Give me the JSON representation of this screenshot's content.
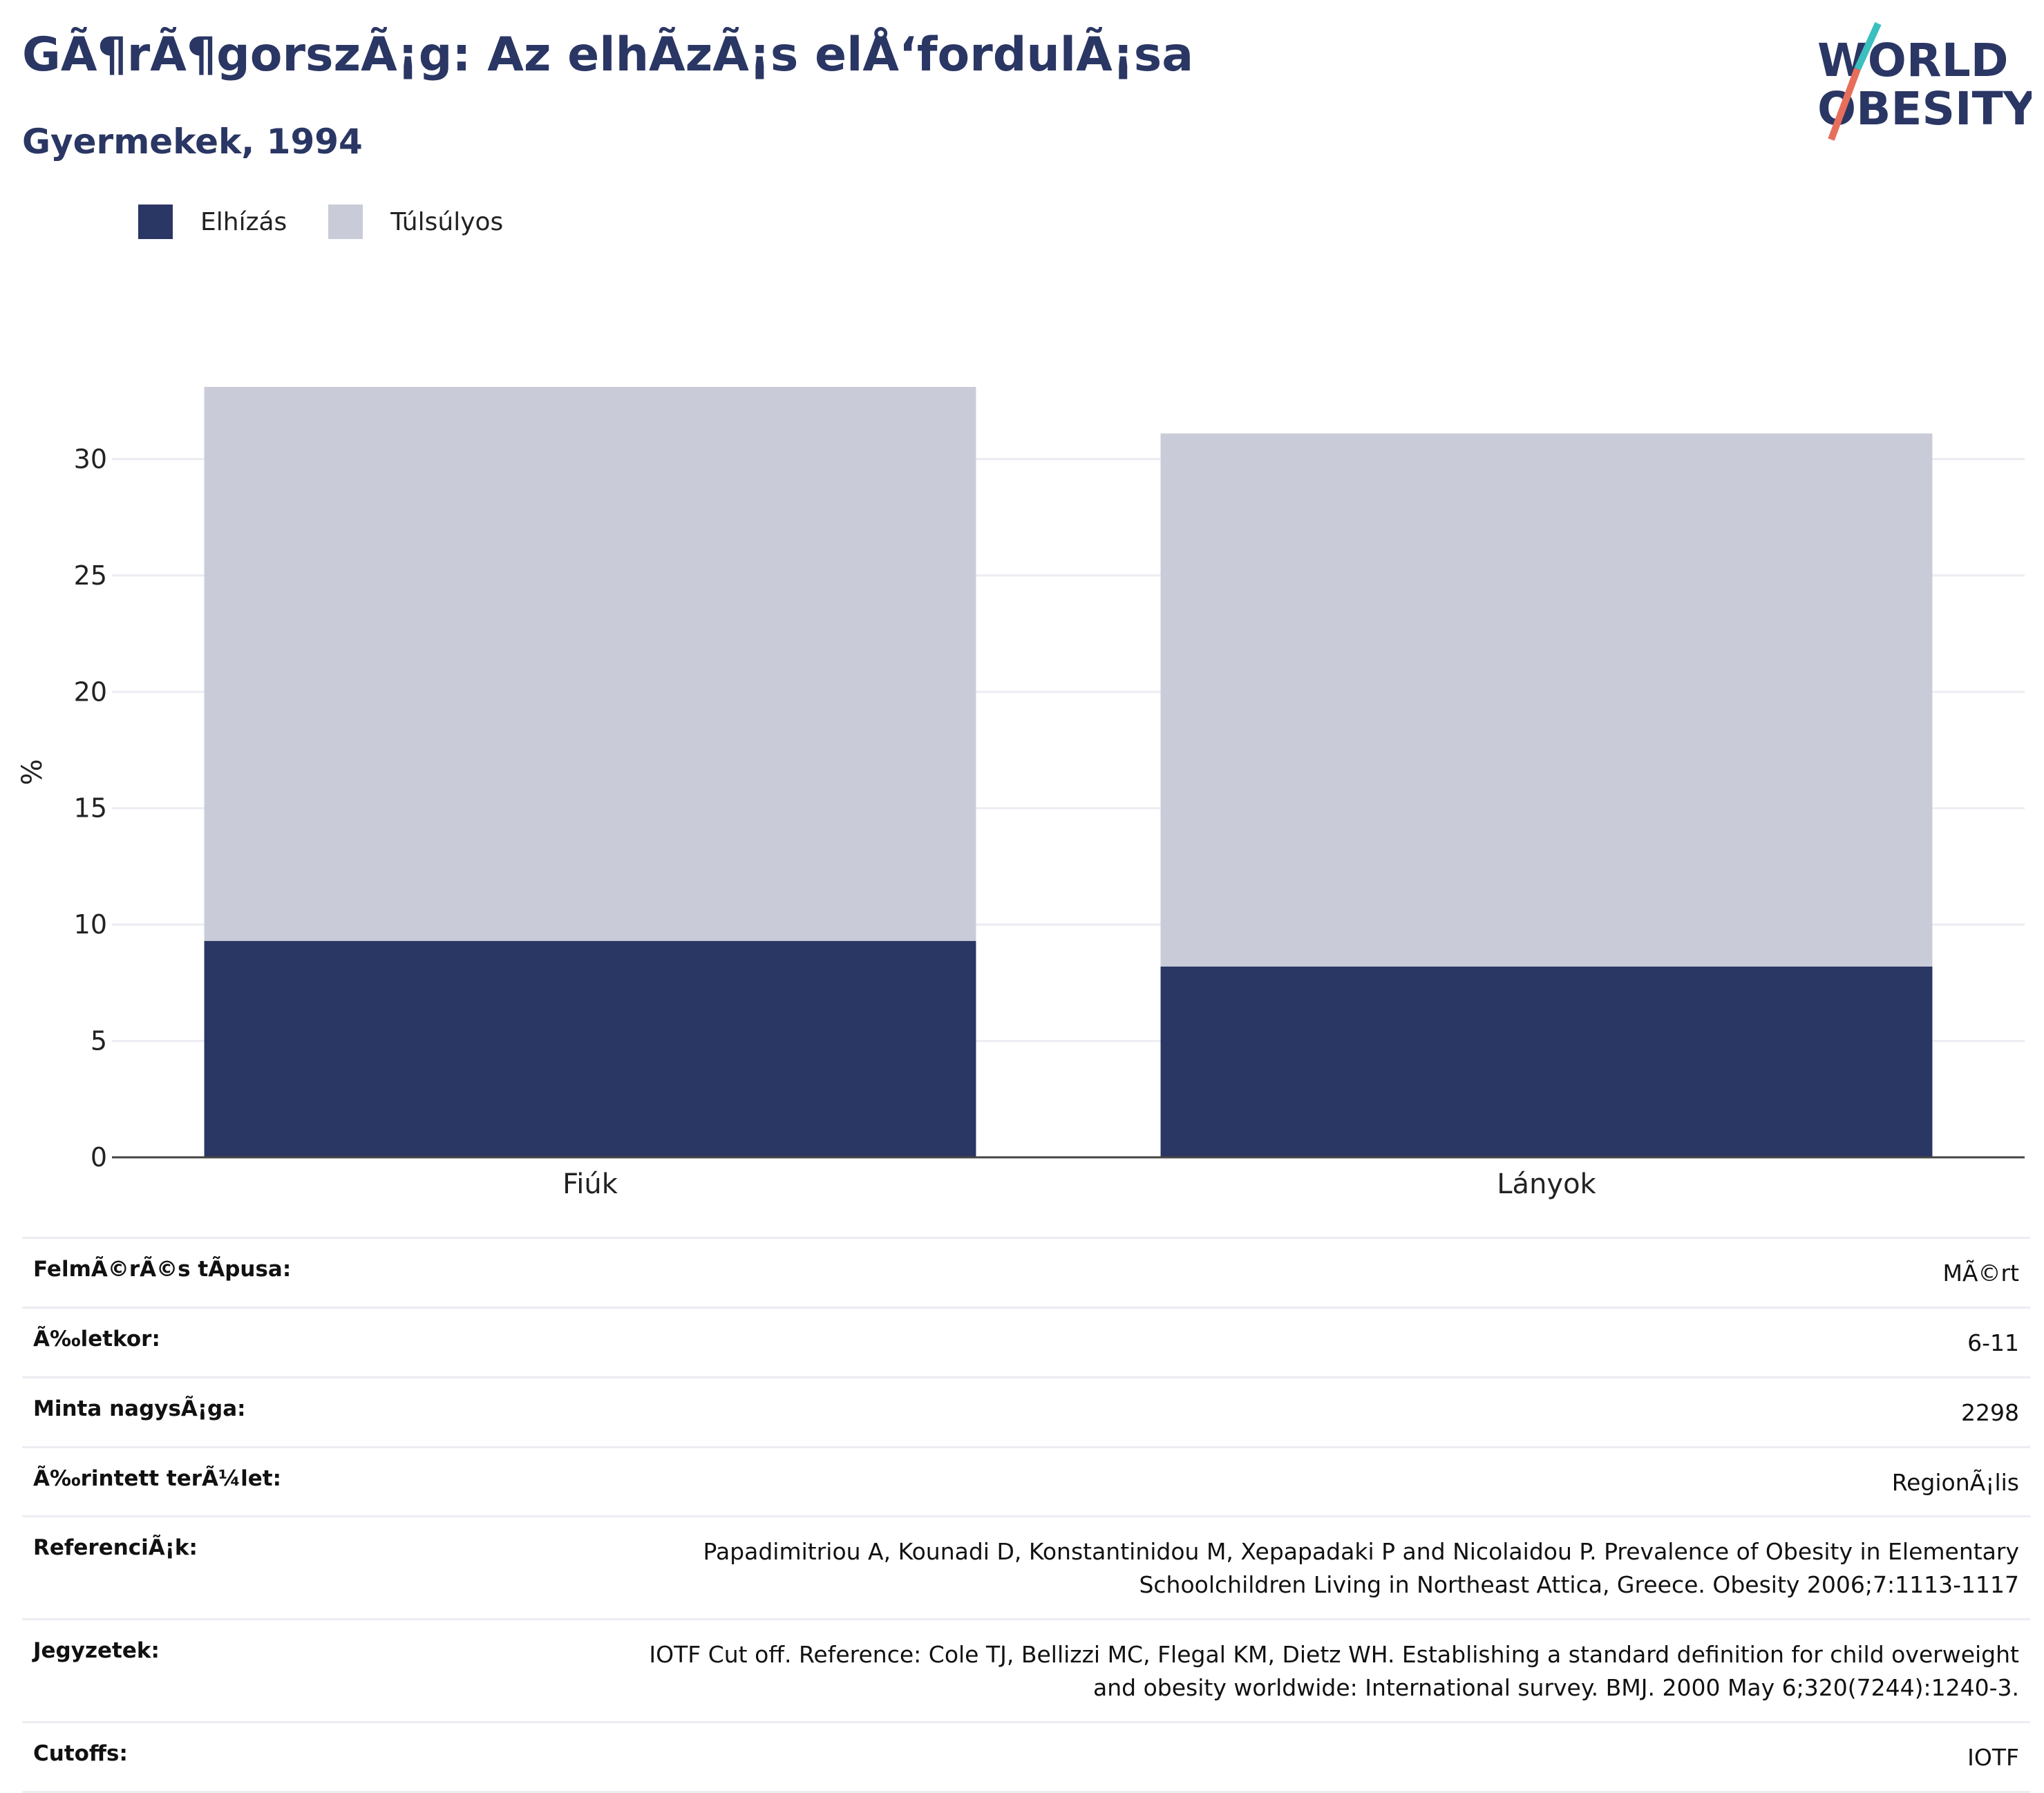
{
  "header": {
    "title": "GÃ¶rÃ¶gorszÃ¡g: Az elhÃ­zÃ¡s elÅ‘fordulÃ¡sa",
    "subtitle": "Gyermekek, 1994"
  },
  "logo": {
    "line1": "WORLD",
    "line2": "OBESITY"
  },
  "colors": {
    "obesity": "#2a3663",
    "overweight": "#c9ccd8",
    "brand_teal": "#3bbfbf",
    "brand_coral": "#e66f5c"
  },
  "chart_data": {
    "type": "bar",
    "stacked": true,
    "categories": [
      "Fiúk",
      "Lányok"
    ],
    "series": [
      {
        "name": "Elhízás",
        "values": [
          9.3,
          8.2
        ]
      },
      {
        "name": "Túlsúlyos",
        "values": [
          23.8,
          22.9
        ]
      }
    ],
    "ylabel": "%",
    "ylim": [
      0,
      33.1
    ],
    "yticks": [
      0,
      5,
      10,
      15,
      20,
      25,
      30
    ],
    "grid": true,
    "legend": "top-left"
  },
  "meta": [
    {
      "label": "FelmÃ©rÃ©s tÃpusa:",
      "value": "MÃ©rt"
    },
    {
      "label": "Ã‰letkor:",
      "value": "6-11"
    },
    {
      "label": "Minta nagysÃ¡ga:",
      "value": "2298"
    },
    {
      "label": "Ã‰rintett terÃ¼let:",
      "value": "RegionÃ¡lis"
    },
    {
      "label": "ReferenciÃ¡k:",
      "value": "Papadimitriou A, Kounadi D, Konstantinidou M, Xepapadaki P and Nicolaidou P. Prevalence of Obesity in Elementary Schoolchildren Living in Northeast Attica, Greece. Obesity 2006;7:1113-1117"
    },
    {
      "label": "Jegyzetek:",
      "value": "IOTF Cut off. Reference: Cole TJ, Bellizzi MC, Flegal KM, Dietz WH. Establishing a standard definition for child overweight and obesity worldwide: International survey. BMJ. 2000 May 6;320(7244):1240-3."
    },
    {
      "label": "Cutoffs:",
      "value": "IOTF"
    }
  ]
}
